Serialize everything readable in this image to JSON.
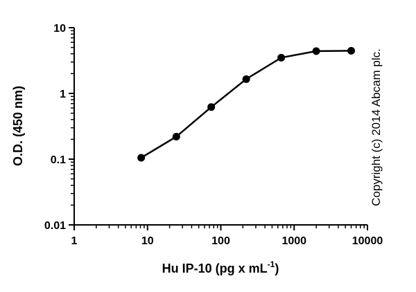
{
  "chart_data": {
    "type": "line",
    "x_scale": "log",
    "y_scale": "log",
    "xlabel_main": "Hu IP-10 (pg x mL",
    "xlabel_sup": "-1",
    "xlabel_end": ")",
    "ylabel": "O.D. (450 nm)",
    "xlim": [
      1,
      10000
    ],
    "ylim": [
      0.01,
      10
    ],
    "x_ticks": [
      1,
      10,
      100,
      1000,
      10000
    ],
    "x_tick_labels": [
      "1",
      "10",
      "100",
      "1000",
      "10000"
    ],
    "y_ticks": [
      0.01,
      0.1,
      1,
      10
    ],
    "y_tick_labels": [
      "0.01",
      "0.1",
      "1",
      "10"
    ],
    "grid": false,
    "series": [
      {
        "x": [
          8.2,
          24.7,
          74,
          222,
          667,
          2000,
          6000
        ],
        "y": [
          0.105,
          0.22,
          0.62,
          1.65,
          3.5,
          4.4,
          4.45
        ]
      }
    ],
    "annotation": "Copyright (c) 2014 Abcam plc.",
    "colors": {
      "line": "#000000",
      "marker": "#000000"
    }
  }
}
